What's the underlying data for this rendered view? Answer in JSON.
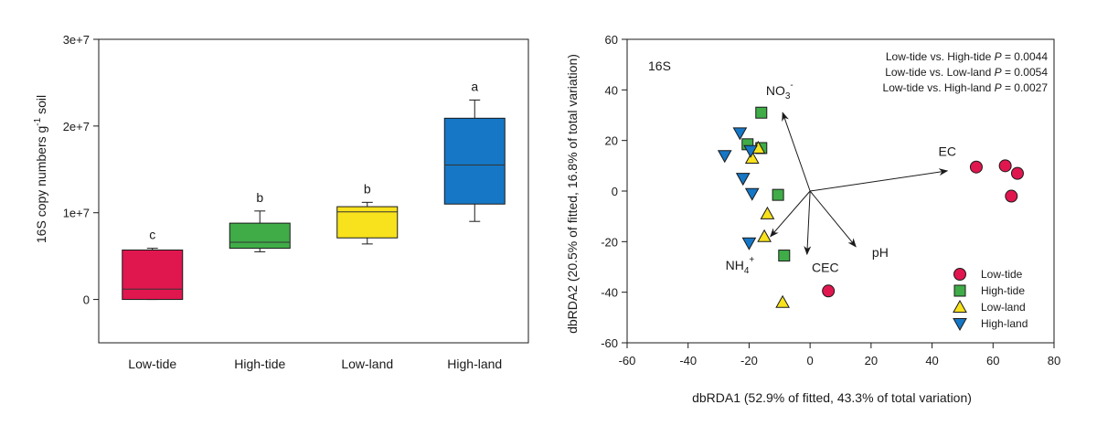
{
  "chart_data": [
    {
      "type": "box",
      "title": "",
      "xlabel": "",
      "ylabel": "16S copy numbers g",
      "ylabel_sup": "-1",
      "ylabel_suffix": " soil",
      "ylim": [
        -5000000,
        30000000
      ],
      "yticks": [
        0,
        10000000,
        20000000,
        30000000
      ],
      "ytick_labels": [
        "0",
        "1e+7",
        "2e+7",
        "3e+7"
      ],
      "categories": [
        "Low-tide",
        "High-tide",
        "Low-land",
        "High-land"
      ],
      "colors": [
        "#e0164f",
        "#3fac48",
        "#f7e21d",
        "#1577c6"
      ],
      "boxes": [
        {
          "name": "Low-tide",
          "min": 0,
          "q1": 0,
          "median": 1200000,
          "q3": 5700000,
          "max": 5900000,
          "letter": "c"
        },
        {
          "name": "High-tide",
          "min": 5500000,
          "q1": 5900000,
          "median": 6600000,
          "q3": 8800000,
          "max": 10200000,
          "letter": "b"
        },
        {
          "name": "Low-land",
          "min": 6400000,
          "q1": 7100000,
          "median": 10100000,
          "q3": 10700000,
          "max": 11200000,
          "letter": "b"
        },
        {
          "name": "High-land",
          "min": 9000000,
          "q1": 11000000,
          "median": 15500000,
          "q3": 20900000,
          "max": 23000000,
          "letter": "a"
        }
      ]
    },
    {
      "type": "scatter",
      "panel_label": "16S",
      "xlabel": "dbRDA1 (52.9% of fitted, 43.3% of total variation)",
      "ylabel": "dbRDA2 (20.5% of fitted, 16.8% of total variation)",
      "xlim": [
        -60,
        80
      ],
      "ylim": [
        -60,
        60
      ],
      "xticks": [
        -60,
        -40,
        -20,
        0,
        20,
        40,
        60,
        80
      ],
      "yticks": [
        -60,
        -40,
        -20,
        0,
        20,
        40,
        60
      ],
      "stats": [
        {
          "text": "Low-tide vs. High-tide ",
          "p_label": "P",
          "p_value": " = 0.0044"
        },
        {
          "text": "Low-tide vs. Low-land ",
          "p_label": "P",
          "p_value": " = 0.0054"
        },
        {
          "text": "Low-tide vs. High-land ",
          "p_label": "P",
          "p_value": " = 0.0027"
        }
      ],
      "vectors": [
        {
          "name": "EC",
          "label_main": "EC",
          "sub": "",
          "sup": "",
          "x": 45,
          "y": 8,
          "lx": 45,
          "ly": 14
        },
        {
          "name": "NO3",
          "label_main": "NO",
          "sub": "3",
          "sup": "-",
          "x": -9,
          "y": 31,
          "lx": -10,
          "ly": 38
        },
        {
          "name": "NH4",
          "label_main": "NH",
          "sub": "4",
          "sup": "+",
          "x": -13,
          "y": -18,
          "lx": -23,
          "ly": -31
        },
        {
          "name": "CEC",
          "label_main": "CEC",
          "sub": "",
          "sup": "",
          "x": -1,
          "y": -25,
          "lx": 5,
          "ly": -32
        },
        {
          "name": "pH",
          "label_main": "pH",
          "sub": "",
          "sup": "",
          "x": 15,
          "y": -22,
          "lx": 23,
          "ly": -26
        }
      ],
      "series": [
        {
          "name": "Low-tide",
          "marker": "circle",
          "color": "#e0164f",
          "points": [
            [
              54.5,
              9.5
            ],
            [
              64,
              10
            ],
            [
              68,
              7
            ],
            [
              66,
              -2
            ],
            [
              6,
              -39.5
            ]
          ]
        },
        {
          "name": "High-tide",
          "marker": "square",
          "color": "#3fac48",
          "points": [
            [
              -16,
              31
            ],
            [
              -20.5,
              18.5
            ],
            [
              -16,
              17
            ],
            [
              -10.5,
              -1.5
            ],
            [
              -8.5,
              -25.5
            ]
          ]
        },
        {
          "name": "Low-land",
          "marker": "triangle",
          "color": "#f7e21d",
          "points": [
            [
              -17,
              17
            ],
            [
              -19,
              13
            ],
            [
              -14,
              -9
            ],
            [
              -15,
              -18
            ],
            [
              -9,
              -44
            ]
          ]
        },
        {
          "name": "High-land",
          "marker": "tri-down",
          "color": "#1577c6",
          "points": [
            [
              -23,
              23
            ],
            [
              -19.5,
              16
            ],
            [
              -28,
              14
            ],
            [
              -22,
              5
            ],
            [
              -19,
              -1
            ],
            [
              -20,
              -20.5
            ]
          ]
        }
      ],
      "legend_position": "bottom-right"
    }
  ]
}
